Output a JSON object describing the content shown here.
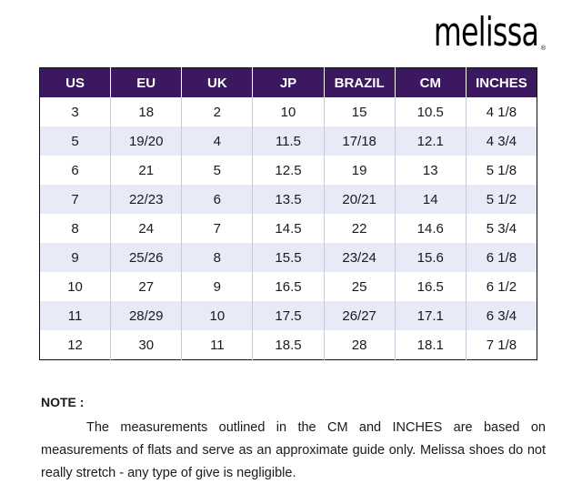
{
  "brand": {
    "logo_text": "melissa",
    "registered_mark": "®"
  },
  "size_chart": {
    "headers": [
      "US",
      "EU",
      "UK",
      "JP",
      "BRAZIL",
      "CM",
      "INCHES"
    ],
    "rows": [
      [
        "3",
        "18",
        "2",
        "10",
        "15",
        "10.5",
        "4 1/8"
      ],
      [
        "5",
        "19/20",
        "4",
        "11.5",
        "17/18",
        "12.1",
        "4 3/4"
      ],
      [
        "6",
        "21",
        "5",
        "12.5",
        "19",
        "13",
        "5 1/8"
      ],
      [
        "7",
        "22/23",
        "6",
        "13.5",
        "20/21",
        "14",
        "5 1/2"
      ],
      [
        "8",
        "24",
        "7",
        "14.5",
        "22",
        "14.6",
        "5 3/4"
      ],
      [
        "9",
        "25/26",
        "8",
        "15.5",
        "23/24",
        "15.6",
        "6 1/8"
      ],
      [
        "10",
        "27",
        "9",
        "16.5",
        "25",
        "16.5",
        "6 1/2"
      ],
      [
        "11",
        "28/29",
        "10",
        "17.5",
        "26/27",
        "17.1",
        "6 3/4"
      ],
      [
        "12",
        "30",
        "11",
        "18.5",
        "28",
        "18.1",
        "7 1/8"
      ]
    ],
    "colors": {
      "header_bg": "#3b1860",
      "header_text": "#ffffff",
      "alt_row_bg": "#e7ebf7"
    }
  },
  "note": {
    "title": "NOTE :",
    "body": "The measurements outlined in the CM and INCHES are based on measurements of flats and serve as an approximate guide only. Melissa shoes do not really stretch - any type of give is negligible."
  }
}
